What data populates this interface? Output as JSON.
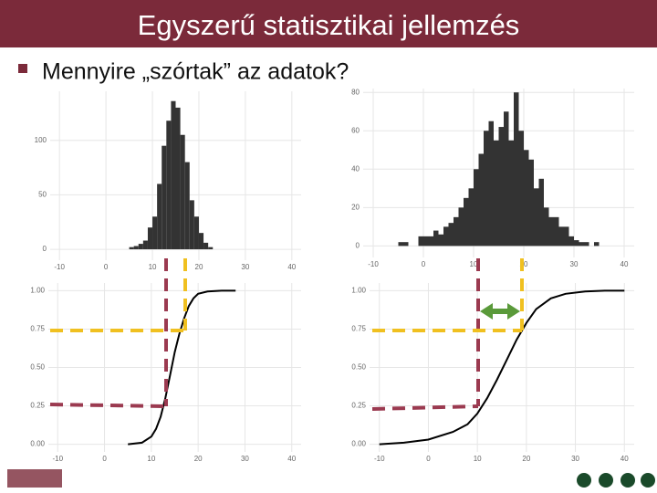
{
  "slide": {
    "title": "Egyszerű statisztikai jellemzés",
    "bullet": "Mennyire „szórtak” az adatok?"
  },
  "chart_data": [
    {
      "type": "histogram",
      "color": "#333333",
      "grid": true,
      "bins": [
        5,
        6,
        7,
        8,
        9,
        10,
        11,
        12,
        13,
        14,
        15,
        16,
        17,
        18,
        19,
        20,
        21,
        22,
        23
      ],
      "values": [
        2,
        3,
        5,
        8,
        20,
        30,
        60,
        95,
        118,
        136,
        130,
        105,
        80,
        45,
        30,
        15,
        6,
        2
      ],
      "xlim": [
        -12,
        42
      ],
      "xticks": [
        -10,
        0,
        10,
        20,
        30,
        40
      ],
      "ylim": [
        -10,
        145
      ],
      "yticks": [
        0,
        50,
        100
      ]
    },
    {
      "type": "histogram",
      "color": "#333333",
      "grid": true,
      "bins": [
        -5,
        -4,
        -3,
        -2,
        -1,
        0,
        1,
        2,
        3,
        4,
        5,
        6,
        7,
        8,
        9,
        10,
        11,
        12,
        13,
        14,
        15,
        16,
        17,
        18,
        19,
        20,
        21,
        22,
        23,
        24,
        25,
        26,
        27,
        28,
        29,
        30,
        31,
        32,
        33,
        34,
        35,
        36
      ],
      "values": [
        2,
        2,
        0,
        0,
        5,
        5,
        5,
        8,
        6,
        10,
        12,
        15,
        20,
        25,
        30,
        40,
        48,
        60,
        65,
        55,
        62,
        70,
        55,
        80,
        60,
        50,
        45,
        30,
        35,
        20,
        15,
        15,
        10,
        10,
        5,
        3,
        2,
        2,
        0,
        2,
        0
      ],
      "xlim": [
        -12,
        42
      ],
      "xticks": [
        -10,
        0,
        10,
        20,
        30,
        40
      ],
      "ylim": [
        -6,
        82
      ],
      "yticks": [
        0,
        20,
        40,
        60,
        80
      ]
    },
    {
      "type": "line",
      "color": "#000000",
      "grid": true,
      "x": [
        5,
        8,
        10,
        11,
        12,
        13,
        14,
        15,
        16,
        17,
        18,
        19,
        20,
        22,
        25,
        28
      ],
      "values": [
        0,
        0.01,
        0.05,
        0.1,
        0.18,
        0.3,
        0.45,
        0.6,
        0.72,
        0.82,
        0.9,
        0.95,
        0.98,
        0.995,
        1,
        1
      ],
      "xlim": [
        -12,
        42
      ],
      "xticks": [
        -10,
        0,
        10,
        20,
        30,
        40
      ],
      "ylim": [
        -0.05,
        1.05
      ],
      "yticks": [
        {
          "value": 0,
          "label": "0.00"
        },
        {
          "value": 0.25,
          "label": "0.25"
        },
        {
          "value": 0.5,
          "label": "0.50"
        },
        {
          "value": 0.75,
          "label": "0.75"
        },
        {
          "value": 1,
          "label": "1.00"
        }
      ]
    },
    {
      "type": "line",
      "color": "#000000",
      "grid": true,
      "x": [
        -10,
        -5,
        0,
        5,
        8,
        10,
        12,
        14,
        16,
        18,
        20,
        22,
        25,
        28,
        32,
        36,
        40
      ],
      "values": [
        0,
        0.01,
        0.03,
        0.08,
        0.13,
        0.2,
        0.3,
        0.42,
        0.55,
        0.68,
        0.79,
        0.88,
        0.95,
        0.98,
        0.995,
        1,
        1
      ],
      "xlim": [
        -12,
        42
      ],
      "xticks": [
        -10,
        0,
        10,
        20,
        30,
        40
      ],
      "ylim": [
        -0.05,
        1.05
      ],
      "yticks": [
        {
          "value": 0,
          "label": "0.00"
        },
        {
          "value": 0.25,
          "label": "0.25"
        },
        {
          "value": 0.5,
          "label": "0.50"
        },
        {
          "value": 0.75,
          "label": "0.75"
        },
        {
          "value": 1,
          "label": "1.00"
        }
      ]
    }
  ]
}
